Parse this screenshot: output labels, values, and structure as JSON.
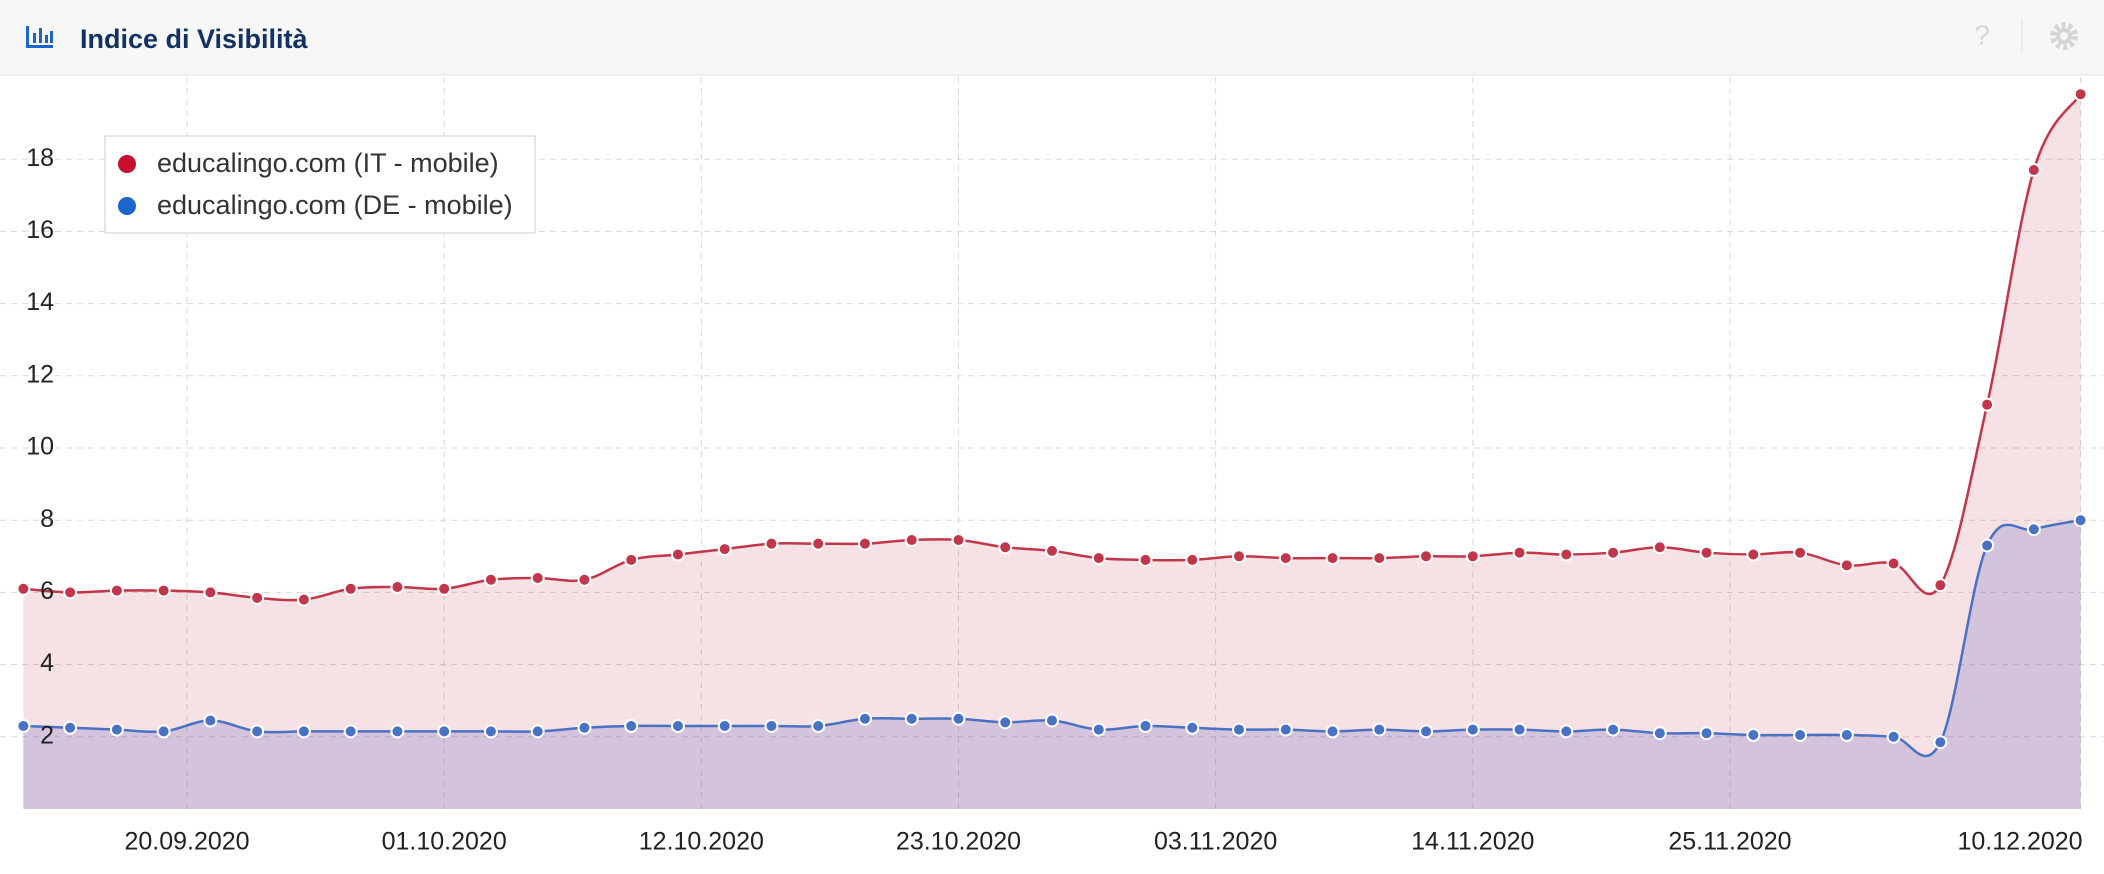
{
  "header": {
    "title": "Indice di Visibilità"
  },
  "chart_data": {
    "type": "line",
    "x": [
      "13.09.2020",
      "15.09.2020",
      "17.09.2020",
      "19.09.2020",
      "21.09.2020",
      "23.09.2020",
      "25.09.2020",
      "27.09.2020",
      "29.09.2020",
      "01.10.2020",
      "03.10.2020",
      "05.10.2020",
      "07.10.2020",
      "09.10.2020",
      "11.10.2020",
      "13.10.2020",
      "15.10.2020",
      "17.10.2020",
      "19.10.2020",
      "21.10.2020",
      "23.10.2020",
      "25.10.2020",
      "27.10.2020",
      "29.10.2020",
      "31.10.2020",
      "02.11.2020",
      "04.11.2020",
      "06.11.2020",
      "08.11.2020",
      "10.11.2020",
      "12.11.2020",
      "14.11.2020",
      "16.11.2020",
      "18.11.2020",
      "20.11.2020",
      "22.11.2020",
      "24.11.2020",
      "26.11.2020",
      "28.11.2020",
      "30.11.2020",
      "02.12.2020",
      "04.12.2020",
      "06.12.2020",
      "08.12.2020",
      "10.12.2020"
    ],
    "series": [
      {
        "name": "educalingo.com (IT - mobile)",
        "color": "#c1364a",
        "fill": "rgba(193,54,74,0.15)",
        "legend_color": "#c8102e",
        "values": [
          6.1,
          6.0,
          6.05,
          6.05,
          6.0,
          5.85,
          5.8,
          6.1,
          6.15,
          6.1,
          6.35,
          6.4,
          6.35,
          6.9,
          7.05,
          7.2,
          7.35,
          7.35,
          7.35,
          7.45,
          7.45,
          7.25,
          7.15,
          6.95,
          6.9,
          6.9,
          7.0,
          6.95,
          6.95,
          6.95,
          7.0,
          7.0,
          7.1,
          7.05,
          7.1,
          7.25,
          7.1,
          7.05,
          7.1,
          6.75,
          6.8,
          6.2,
          11.2,
          17.7,
          19.8
        ]
      },
      {
        "name": "educalingo.com (DE - mobile)",
        "color": "#4a72c4",
        "fill": "rgba(90,90,190,0.22)",
        "legend_color": "#1a66cc",
        "values": [
          2.3,
          2.25,
          2.2,
          2.15,
          2.45,
          2.15,
          2.15,
          2.15,
          2.15,
          2.15,
          2.15,
          2.15,
          2.25,
          2.3,
          2.3,
          2.3,
          2.3,
          2.3,
          2.5,
          2.5,
          2.5,
          2.4,
          2.45,
          2.2,
          2.3,
          2.25,
          2.2,
          2.2,
          2.15,
          2.2,
          2.15,
          2.2,
          2.2,
          2.15,
          2.2,
          2.1,
          2.1,
          2.05,
          2.05,
          2.05,
          2.0,
          1.85,
          7.3,
          7.75,
          8.0
        ]
      }
    ],
    "xlim": [
      "12.09.2020",
      "11.12.2020"
    ],
    "xticks": [
      "20.09.2020",
      "01.10.2020",
      "12.10.2020",
      "23.10.2020",
      "03.11.2020",
      "14.11.2020",
      "25.11.2020",
      "10.12.2020"
    ],
    "ylim": [
      0,
      20
    ],
    "yticks": [
      2,
      4,
      6,
      8,
      10,
      12,
      14,
      16,
      18
    ],
    "grid": true
  }
}
